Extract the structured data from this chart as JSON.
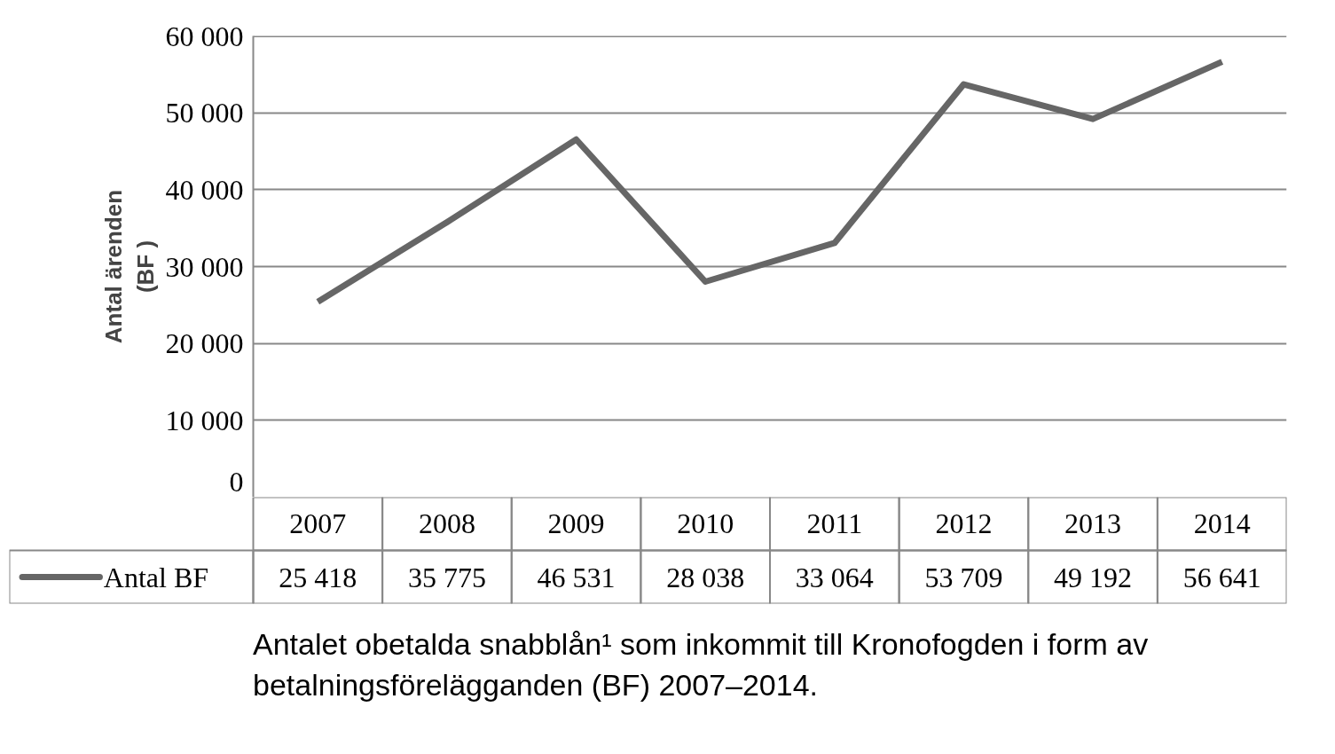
{
  "chart_data": {
    "type": "line",
    "ylabel": "Antal ärenden\n(BF )",
    "categories": [
      "2007",
      "2008",
      "2009",
      "2010",
      "2011",
      "2012",
      "2013",
      "2014"
    ],
    "series": [
      {
        "name": "Antal BF",
        "color": "#666666",
        "values": [
          25418,
          35775,
          46531,
          28038,
          33064,
          53709,
          49192,
          56641
        ],
        "value_labels": [
          "25 418",
          "35 775",
          "46 531",
          "28 038",
          "33 064",
          "53 709",
          "49 192",
          "56 641"
        ]
      }
    ],
    "ylim": [
      0,
      60000
    ],
    "yticks": [
      {
        "value": 0,
        "label": "0"
      },
      {
        "value": 10000,
        "label": "10 000"
      },
      {
        "value": 20000,
        "label": "20 000"
      },
      {
        "value": 30000,
        "label": "30 000"
      },
      {
        "value": 40000,
        "label": "40 000"
      },
      {
        "value": 50000,
        "label": "50 000"
      },
      {
        "value": 60000,
        "label": "60 000"
      }
    ],
    "grid": "y",
    "legend": "bottom",
    "data_labels": true,
    "annotations": [
      "Antalet obetalda snabblån¹ som inkommit till Kronofogden i form av betalningsförelägganden (BF) 2007–2014."
    ]
  }
}
